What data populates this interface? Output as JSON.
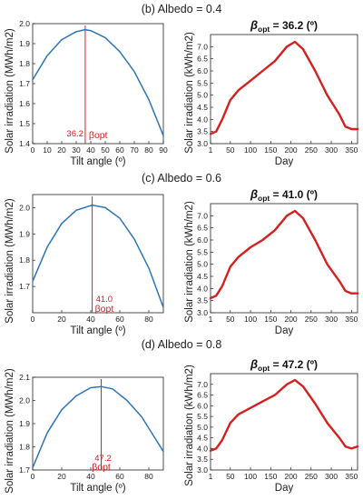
{
  "chart_data": [
    {
      "type": "line",
      "panel_title": "(b) Albedo = 0.4",
      "xlabel": "Tilt angle (º)",
      "ylabel": "Solar irradiation (MWh/m2)",
      "xlim": [
        0,
        90
      ],
      "ylim": [
        1.4,
        2.0
      ],
      "xticks": [
        0,
        10,
        20,
        30,
        40,
        50,
        60,
        70,
        80,
        90
      ],
      "yticks": [
        1.4,
        1.5,
        1.6,
        1.7,
        1.8,
        1.9,
        2.0
      ],
      "x": [
        0,
        10,
        20,
        30,
        36.2,
        40,
        50,
        60,
        70,
        80,
        90
      ],
      "y": [
        1.72,
        1.84,
        1.92,
        1.96,
        1.97,
        1.965,
        1.93,
        1.86,
        1.76,
        1.62,
        1.44
      ],
      "line_color": "#2e75b6",
      "marker_x": 36.2,
      "marker_label": "36.2",
      "marker_text": "βopt",
      "marker_color": "#d42020"
    },
    {
      "type": "line",
      "title_symbol": "β",
      "title_sub": "opt",
      "title_value": "= 36.2 (º)",
      "xlabel": "Day",
      "ylabel": "Solar irradiation (kWh/m2)",
      "xlim": [
        1,
        365
      ],
      "ylim": [
        3.0,
        7.5
      ],
      "xticks": [
        1,
        50,
        100,
        150,
        200,
        250,
        300,
        350
      ],
      "yticks": [
        3.0,
        3.5,
        4.0,
        4.5,
        5.0,
        5.5,
        6.0,
        6.5,
        7.0
      ],
      "x": [
        1,
        15,
        30,
        50,
        70,
        100,
        130,
        160,
        190,
        210,
        230,
        260,
        290,
        320,
        335,
        350,
        365
      ],
      "y": [
        3.4,
        3.5,
        4.0,
        4.8,
        5.2,
        5.6,
        6.0,
        6.4,
        7.0,
        7.2,
        6.9,
        6.0,
        5.0,
        4.2,
        3.7,
        3.6,
        3.6
      ],
      "line_color": "#d42020"
    },
    {
      "type": "line",
      "panel_title": "(c) Albedo = 0.6",
      "xlabel": "Tilt angle (º)",
      "ylabel": "Solar irradiation (MWh/m2)",
      "xlim": [
        0,
        90
      ],
      "ylim": [
        1.6,
        2.05
      ],
      "xticks": [
        0,
        20,
        40,
        60,
        80
      ],
      "yticks": [
        1.7,
        1.8,
        1.9,
        2.0
      ],
      "x": [
        0,
        10,
        20,
        30,
        41,
        50,
        60,
        70,
        80,
        90
      ],
      "y": [
        1.72,
        1.85,
        1.94,
        1.99,
        2.01,
        2.0,
        1.96,
        1.88,
        1.77,
        1.62
      ],
      "line_color": "#2e75b6",
      "marker_x": 41.0,
      "marker_label": "41.0",
      "marker_text": "βopt",
      "marker_color": "#d42020"
    },
    {
      "type": "line",
      "title_symbol": "β",
      "title_sub": "opt",
      "title_value": "= 41.0 (º)",
      "xlabel": "Day",
      "ylabel": "Solar irradiation (kWh/m2)",
      "xlim": [
        1,
        365
      ],
      "ylim": [
        3.0,
        7.5
      ],
      "xticks": [
        1,
        50,
        100,
        150,
        200,
        250,
        300,
        350
      ],
      "yticks": [
        3.0,
        3.5,
        4.0,
        4.5,
        5.0,
        5.5,
        6.0,
        6.5,
        7.0
      ],
      "x": [
        1,
        15,
        30,
        50,
        70,
        100,
        130,
        160,
        190,
        210,
        230,
        260,
        290,
        320,
        335,
        350,
        365
      ],
      "y": [
        3.6,
        3.7,
        4.1,
        4.9,
        5.3,
        5.7,
        6.0,
        6.4,
        7.0,
        7.2,
        6.9,
        6.0,
        5.0,
        4.3,
        3.9,
        3.8,
        3.8
      ],
      "line_color": "#d42020"
    },
    {
      "type": "line",
      "panel_title": "(d) Albedo = 0.8",
      "xlabel": "Tilt angle (º)",
      "ylabel": "Solar irradiation (MWh/m2)",
      "xlim": [
        0,
        90
      ],
      "ylim": [
        1.7,
        2.1
      ],
      "xticks": [
        0,
        20,
        40,
        60,
        80
      ],
      "yticks": [
        1.7,
        1.8,
        1.9,
        2.0,
        2.1
      ],
      "x": [
        0,
        10,
        20,
        30,
        40,
        47.2,
        55,
        65,
        75,
        90
      ],
      "y": [
        1.71,
        1.86,
        1.96,
        2.02,
        2.055,
        2.06,
        2.05,
        2.0,
        1.93,
        1.78
      ],
      "line_color": "#2e75b6",
      "marker_x": 47.2,
      "marker_label": "47.2",
      "marker_text": "βopt",
      "marker_color": "#d42020"
    },
    {
      "type": "line",
      "title_symbol": "β",
      "title_sub": "opt",
      "title_value": "= 47.2 (º)",
      "xlabel": "Day",
      "ylabel": "Solar irradiation (kWh/m2)",
      "xlim": [
        1,
        365
      ],
      "ylim": [
        3.0,
        7.5
      ],
      "xticks": [
        1,
        50,
        100,
        150,
        200,
        250,
        300,
        350
      ],
      "yticks": [
        3.0,
        3.5,
        4.0,
        4.5,
        5.0,
        5.5,
        6.0,
        6.5,
        7.0
      ],
      "x": [
        1,
        15,
        30,
        50,
        70,
        100,
        130,
        160,
        190,
        210,
        230,
        260,
        290,
        320,
        335,
        350,
        365
      ],
      "y": [
        3.9,
        4.0,
        4.4,
        5.2,
        5.6,
        5.9,
        6.2,
        6.5,
        7.0,
        7.2,
        6.9,
        6.1,
        5.2,
        4.5,
        4.1,
        4.0,
        4.1
      ],
      "line_color": "#d42020"
    }
  ]
}
